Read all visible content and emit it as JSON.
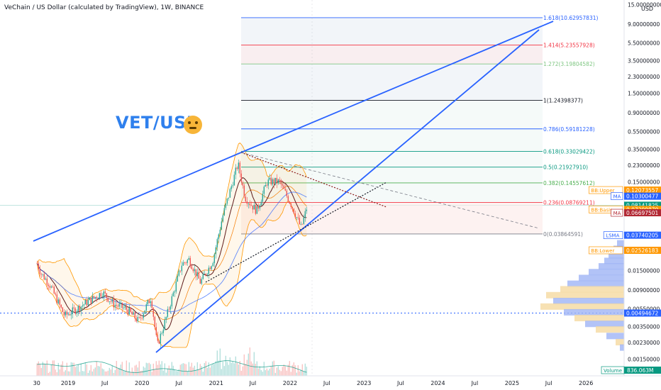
{
  "header": {
    "title": "VeChain / US Dollar (calculated by TradingView), 1W, BINANCE"
  },
  "annotation": {
    "text": "VET/USD"
  },
  "axis": {
    "currency": "USD",
    "y_ticks": [
      "15.00000000",
      "9.00000000",
      "5.50000000",
      "3.50000000",
      "2.30000000",
      "1.50000000",
      "0.90000000",
      "0.55000000",
      "0.35000000",
      "0.23000000",
      "0.15000000",
      "0.01500000",
      "0.00900000",
      "0.00550000",
      "0.00350000",
      "0.00230000",
      "0.00150000"
    ],
    "x_ticks": [
      "30",
      "2019",
      "Jul",
      "2020",
      "Jul",
      "2021",
      "Jul",
      "2022",
      "Jul",
      "2023",
      "Jul",
      "2024",
      "Jul",
      "2025",
      "Jul",
      "2026"
    ]
  },
  "fib_levels": [
    {
      "label": "1.618(10.62957831)",
      "color": "#2962ff"
    },
    {
      "label": "1.414(5.23557928)",
      "color": "#f23645"
    },
    {
      "label": "1.272(3.19804582)",
      "color": "#81c784"
    },
    {
      "label": "1(1.24398377)",
      "color": "#131722"
    },
    {
      "label": "0.786(0.59181228)",
      "color": "#2962ff"
    },
    {
      "label": "0.618(0.33029422)",
      "color": "#089981"
    },
    {
      "label": "0.5(0.21927910)",
      "color": "#089981"
    },
    {
      "label": "0.382(0.14557612)",
      "color": "#4caf50"
    },
    {
      "label": "0.236(0.08769211)",
      "color": "#f23645"
    },
    {
      "label": "0(0.03864591)",
      "color": "#787b86"
    }
  ],
  "price_tags": [
    {
      "label": "BB:Upper",
      "value": "0.12073557",
      "color": "#ff9800"
    },
    {
      "label": "MA",
      "value": "0.10300477",
      "color": "#2962ff"
    },
    {
      "label": "",
      "value": "0.08141825",
      "color": "#089981",
      "sub": "4d 9h"
    },
    {
      "label": "BB:Basis",
      "value": "0.07299870",
      "color": "#ff9800"
    },
    {
      "label": "MA",
      "value": "0.06697501",
      "color": "#b22833"
    },
    {
      "label": "LSMA",
      "value": "0.03740205",
      "color": "#2962ff"
    },
    {
      "label": "BB:Lower",
      "value": "0.02526183",
      "color": "#ff9800"
    }
  ],
  "hline_tag": {
    "value": "0.00494672",
    "color": "#2962ff"
  },
  "volume_tag": {
    "label": "Volume",
    "value": "836.063M",
    "color": "#089981"
  },
  "chart_data": {
    "type": "line",
    "title": "VeChain / US Dollar (calculated by TradingView), 1W, BINANCE",
    "yscale": "log",
    "ylim": [
      0.0012,
      16
    ],
    "xlim": [
      "2018-07-30",
      "2026-03-01"
    ],
    "series": [
      {
        "values": [
          {
            "x": "2018-08-01",
            "y": 0.018
          },
          {
            "x": "2018-08-20",
            "y": 0.014
          },
          {
            "x": "2018-10-01",
            "y": 0.0105
          },
          {
            "x": "2018-12-15",
            "y": 0.0046
          },
          {
            "x": "2019-02-01",
            "y": 0.0053
          },
          {
            "x": "2019-04-15",
            "y": 0.0068
          },
          {
            "x": "2019-06-20",
            "y": 0.0085
          },
          {
            "x": "2019-08-15",
            "y": 0.0062
          },
          {
            "x": "2019-10-15",
            "y": 0.0055
          },
          {
            "x": "2019-12-15",
            "y": 0.004
          },
          {
            "x": "2020-02-15",
            "y": 0.0075
          },
          {
            "x": "2020-03-16",
            "y": 0.0021
          },
          {
            "x": "2020-05-01",
            "y": 0.0045
          },
          {
            "x": "2020-07-15",
            "y": 0.0175
          },
          {
            "x": "2020-08-20",
            "y": 0.02
          },
          {
            "x": "2020-10-15",
            "y": 0.011
          },
          {
            "x": "2020-12-15",
            "y": 0.019
          },
          {
            "x": "2021-02-01",
            "y": 0.06
          },
          {
            "x": "2021-04-19",
            "y": 0.24
          },
          {
            "x": "2021-05-24",
            "y": 0.1
          },
          {
            "x": "2021-07-20",
            "y": 0.07
          },
          {
            "x": "2021-09-10",
            "y": 0.15
          },
          {
            "x": "2021-11-10",
            "y": 0.15
          },
          {
            "x": "2022-01-10",
            "y": 0.08
          },
          {
            "x": "2022-02-25",
            "y": 0.045
          },
          {
            "x": "2022-03-28",
            "y": 0.0814
          }
        ]
      }
    ],
    "indicators": [
      "BB:Upper",
      "BB:Basis",
      "BB:Lower",
      "MA",
      "LSMA",
      "Volume"
    ],
    "grid": true
  }
}
